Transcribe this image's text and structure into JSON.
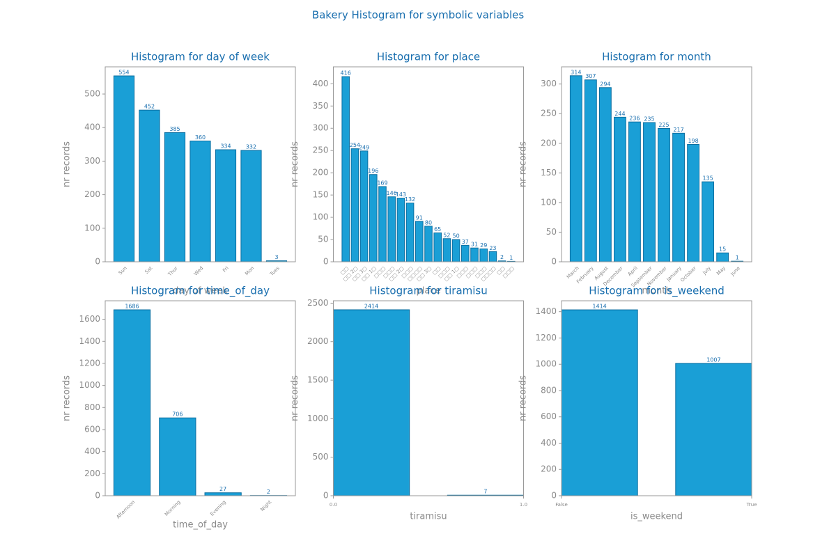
{
  "title": "Bakery Histogram for symbolic variables",
  "chart_data": [
    {
      "type": "bar",
      "title": "Histogram for day of week",
      "xlabel": "day of week",
      "ylabel": "nr records",
      "categories": [
        "Sun",
        "Sat",
        "Thur",
        "Wed",
        "Fri",
        "Mon",
        "Tues"
      ],
      "values": [
        554,
        452,
        385,
        360,
        334,
        332,
        3
      ],
      "color": "#1a9fd6",
      "ylim": [
        0,
        581
      ],
      "yticks": [
        0,
        100,
        200,
        300,
        400,
        500
      ]
    },
    {
      "type": "bar",
      "title": "Histogram for place",
      "xlabel": "place",
      "ylabel": "nr records",
      "categories": [
        "□□",
        "□□ 2□",
        "□□ 3□",
        "□□ 1□",
        "□□□",
        "□□□",
        "□□ 2□",
        "□□□",
        "□□□□",
        "□□ 3□",
        "□□",
        "□□□",
        "□□ 1□",
        "□□□",
        "□□□",
        "□□□",
        "□□□□",
        "□□",
        "□□□"
      ],
      "values": [
        416,
        254,
        249,
        196,
        169,
        146,
        143,
        132,
        91,
        80,
        65,
        52,
        50,
        37,
        31,
        29,
        23,
        2,
        1
      ],
      "color": "#1a9fd6",
      "ylim": [
        0,
        438
      ],
      "yticks": [
        0,
        50,
        100,
        150,
        200,
        250,
        300,
        350,
        400
      ]
    },
    {
      "type": "bar",
      "title": "Histogram for month",
      "xlabel": "month",
      "ylabel": "nr records",
      "categories": [
        "March",
        "February",
        "August",
        "December",
        "April",
        "September",
        "November",
        "January",
        "October",
        "July",
        "May",
        "June"
      ],
      "values": [
        314,
        307,
        294,
        244,
        236,
        235,
        225,
        217,
        198,
        135,
        15,
        1
      ],
      "color": "#1a9fd6",
      "ylim": [
        0,
        329
      ],
      "yticks": [
        0,
        50,
        100,
        150,
        200,
        250,
        300
      ]
    },
    {
      "type": "bar",
      "title": "Histogram for time_of_day",
      "xlabel": "time_of_day",
      "ylabel": "nr records",
      "categories": [
        "Afternoon",
        "Morning",
        "Evening",
        "Night"
      ],
      "values": [
        1686,
        706,
        27,
        2
      ],
      "color": "#1a9fd6",
      "ylim": [
        0,
        1768
      ],
      "yticks": [
        0,
        200,
        400,
        600,
        800,
        1000,
        1200,
        1400,
        1600
      ]
    },
    {
      "type": "histogram",
      "title": "Histogram for tiramisu",
      "xlabel": "tiramisu",
      "ylabel": "nr records",
      "bins": [
        0,
        0.4,
        0.6,
        1
      ],
      "values": [
        2414,
        0,
        7
      ],
      "color": "#1a9fd6",
      "xlim": [
        0,
        1
      ],
      "xticks": [
        {
          "value": 0,
          "label": "0.0"
        },
        {
          "value": 1,
          "label": "1.0"
        }
      ],
      "ylim": [
        0,
        2531
      ],
      "yticks": [
        0,
        500,
        1000,
        1500,
        2000,
        2500
      ]
    },
    {
      "type": "histogram",
      "title": "Histogram for is_weekend",
      "xlabel": "is_weekend",
      "ylabel": "nr records",
      "bins": [
        0,
        0.4,
        0.6,
        1
      ],
      "values": [
        1414,
        0,
        1007
      ],
      "color": "#1a9fd6",
      "xlim": [
        0,
        1
      ],
      "xticks": [
        {
          "value": 0,
          "label": "False"
        },
        {
          "value": 1,
          "label": "True"
        }
      ],
      "ylim": [
        0,
        1483
      ],
      "yticks": [
        0,
        200,
        400,
        600,
        800,
        1000,
        1200,
        1400
      ]
    }
  ]
}
